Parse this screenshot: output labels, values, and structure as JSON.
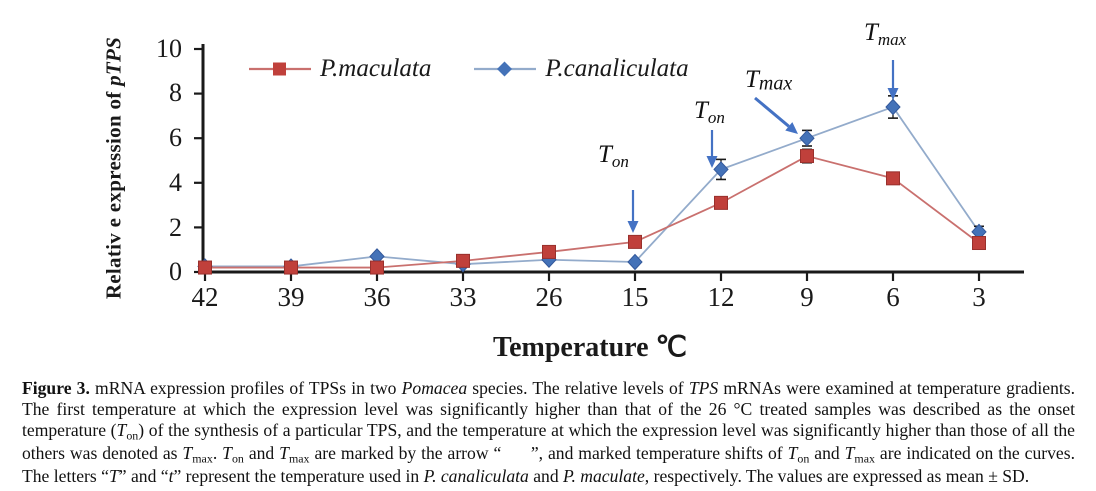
{
  "figure": {
    "caption": {
      "segments": [
        {
          "text": "Figure 3.",
          "style": "b"
        },
        {
          "text": " mRNA expression profiles of TPSs in two ",
          "style": ""
        },
        {
          "text": "Pomacea",
          "style": "i"
        },
        {
          "text": " species. The relative levels of ",
          "style": ""
        },
        {
          "text": "TPS",
          "style": "i"
        },
        {
          "text": " mRNAs were examined at temperature gradients. The first temperature at which the expression level was significantly higher than that of the 26 °C treated samples was described as the onset temperature (",
          "style": ""
        },
        {
          "text": "T",
          "style": "i"
        },
        {
          "text": "on",
          "style": "sub"
        },
        {
          "text": ") of the synthesis of a particular TPS, and the temperature at which the expression level was significantly higher than those of all the others was denoted as ",
          "style": ""
        },
        {
          "text": "T",
          "style": "i"
        },
        {
          "text": "max",
          "style": "sub"
        },
        {
          "text": ". ",
          "style": ""
        },
        {
          "text": "T",
          "style": "i"
        },
        {
          "text": "on",
          "style": "sub"
        },
        {
          "text": " and ",
          "style": ""
        },
        {
          "text": "T",
          "style": "i"
        },
        {
          "text": "max",
          "style": "sub"
        },
        {
          "text": " are marked by the arrow “      ”, and marked temperature shifts of ",
          "style": ""
        },
        {
          "text": "T",
          "style": "i"
        },
        {
          "text": "on",
          "style": "sub"
        },
        {
          "text": " and ",
          "style": ""
        },
        {
          "text": "T",
          "style": "i"
        },
        {
          "text": "max",
          "style": "sub"
        },
        {
          "text": " are indicated on the curves. The letters “",
          "style": ""
        },
        {
          "text": "T",
          "style": "i"
        },
        {
          "text": "” and “",
          "style": ""
        },
        {
          "text": "t",
          "style": "i"
        },
        {
          "text": "” represent the temperature used in ",
          "style": ""
        },
        {
          "text": "P. canaliculata",
          "style": "i"
        },
        {
          "text": " and ",
          "style": ""
        },
        {
          "text": "P. maculate",
          "style": "i"
        },
        {
          "text": ", respectively. The values are expressed as mean ± SD.",
          "style": ""
        }
      ]
    }
  },
  "chart_data": {
    "type": "line",
    "xlabel": "Temperature ℃",
    "ylabel": "Relativ e expression of pTPS",
    "ylabel_prefix": "Relativ e expression of ",
    "ylabel_emphasis": "pTPS",
    "categories": [
      "42",
      "39",
      "36",
      "33",
      "26",
      "15",
      "12",
      "9",
      "6",
      "3"
    ],
    "yticks": [
      "10",
      "8",
      "6",
      "4",
      "2",
      "0"
    ],
    "ylim": [
      0,
      10
    ],
    "grid": false,
    "legend_position": "top-center",
    "series": [
      {
        "name": "P.maculata",
        "marker": "square",
        "color": "#C0403B",
        "edge_color": "#99302C",
        "line_color": "#C9706E",
        "values": [
          0.2,
          0.2,
          0.2,
          0.5,
          0.9,
          1.35,
          3.1,
          5.2,
          4.2,
          1.3
        ],
        "errors": [
          0,
          0,
          0,
          0,
          0,
          0.15,
          0,
          0.3,
          0,
          0.1
        ]
      },
      {
        "name": "P.canaliculata",
        "marker": "diamond",
        "color": "#4472B8",
        "edge_color": "#33589B",
        "line_color": "#93ABCB",
        "values": [
          0.25,
          0.25,
          0.7,
          0.35,
          0.55,
          0.45,
          4.6,
          6.0,
          7.4,
          1.8
        ],
        "errors": [
          0,
          0,
          0.1,
          0,
          0,
          0,
          0.45,
          0.35,
          0.5,
          0.25
        ]
      }
    ],
    "annotations": [
      {
        "main": "T",
        "sub": "on",
        "arrow": "down"
      },
      {
        "main": "T",
        "sub": "on",
        "arrow": "down"
      },
      {
        "main": "T",
        "sub": "max",
        "arrow": "down-right"
      },
      {
        "main": "T",
        "sub": "max",
        "arrow": "down"
      }
    ],
    "arrow_color": "#4472C4",
    "error_bar_color": "#1a1a1a",
    "axis_color": "#1a1a1a"
  }
}
